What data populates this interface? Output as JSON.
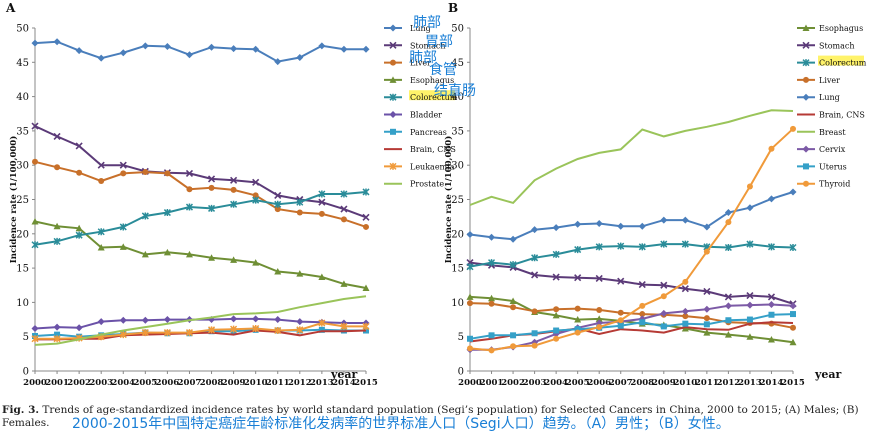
{
  "caption": {
    "label": "Fig. 3.",
    "text": "Trends of age-standardized incidence rates by world standard population (Segi’s population) for Selected Cancers in China, 2000 to 2015; (A) Males; (B) Females.",
    "note_zh": "2000-2015年中国特定癌症年龄标准化发病率的世界标准人口（Segi人口）趋势。（A）男性；（B）女性。"
  },
  "annotations_zh": [
    "肺部",
    "胃部",
    "肺部",
    "食管",
    "结直肠"
  ],
  "colors": {
    "Lung": "#4a7ebb",
    "Stomach": "#5b3a78",
    "Liver": "#c8702a",
    "Esophagus": "#6f8f35",
    "Colorectum": "#2a8c99",
    "Bladder": "#6b52a8",
    "Pancreas": "#35a0c8",
    "Brain, CNS": "#b63a35",
    "Leukaemia": "#f09a3a",
    "Prostate": "#9ac45a",
    "Breast": "#9ac45a",
    "Cervix": "#7c5aa6",
    "Uterus": "#35a0c8",
    "Thyroid": "#f09a3a"
  },
  "markers": {
    "Lung": "diamond",
    "Stomach": "x",
    "Liver": "circle",
    "Esophagus": "triangle",
    "Colorectum": "star",
    "Bladder": "diamond",
    "Pancreas": "square",
    "Brain, CNS": "none",
    "Leukaemia": "star",
    "Prostate": "none",
    "Breast": "none",
    "Cervix": "diamond",
    "Uterus": "square",
    "Thyroid": "circle"
  },
  "chart_data": [
    {
      "type": "line",
      "panel": "A",
      "ylabel": "Incidence rate (1/100,000)",
      "xlabel": "year",
      "ylim": [
        0,
        50
      ],
      "yticks": [
        0,
        5,
        10,
        15,
        20,
        25,
        30,
        35,
        40,
        45,
        50
      ],
      "x": [
        2000,
        2001,
        2002,
        2003,
        2004,
        2005,
        2006,
        2007,
        2008,
        2009,
        2010,
        2011,
        2012,
        2013,
        2014,
        2015
      ],
      "legend_position": "top-right",
      "series": [
        {
          "name": "Lung",
          "values": [
            47.8,
            48.0,
            46.7,
            45.6,
            46.4,
            47.4,
            47.3,
            46.1,
            47.2,
            47.0,
            46.9,
            45.1,
            45.7,
            47.4,
            46.9,
            46.9
          ]
        },
        {
          "name": "Stomach",
          "values": [
            35.7,
            34.2,
            32.8,
            30.0,
            30.0,
            29.1,
            28.9,
            28.8,
            28.0,
            27.8,
            27.5,
            25.6,
            25.0,
            24.6,
            23.6,
            22.4
          ]
        },
        {
          "name": "Liver",
          "values": [
            30.5,
            29.7,
            28.9,
            27.7,
            28.8,
            29.0,
            28.8,
            26.5,
            26.7,
            26.4,
            25.6,
            23.6,
            23.1,
            22.9,
            22.1,
            21.0
          ]
        },
        {
          "name": "Esophagus",
          "values": [
            21.8,
            21.1,
            20.8,
            18.0,
            18.1,
            17.0,
            17.3,
            17.0,
            16.5,
            16.2,
            15.8,
            14.5,
            14.2,
            13.7,
            12.7,
            12.1
          ]
        },
        {
          "name": "Colorectum",
          "values": [
            18.4,
            18.9,
            19.8,
            20.3,
            21.0,
            22.6,
            23.1,
            23.9,
            23.7,
            24.3,
            24.9,
            24.3,
            24.6,
            25.8,
            25.8,
            26.1
          ]
        },
        {
          "name": "Bladder",
          "values": [
            6.2,
            6.4,
            6.3,
            7.2,
            7.4,
            7.4,
            7.5,
            7.5,
            7.5,
            7.6,
            7.6,
            7.5,
            7.2,
            7.1,
            7.0,
            7.0
          ]
        },
        {
          "name": "Pancreas",
          "values": [
            5.1,
            5.3,
            5.0,
            5.2,
            5.4,
            5.6,
            5.5,
            5.5,
            5.8,
            5.8,
            6.0,
            5.9,
            5.9,
            6.0,
            5.9,
            5.9
          ]
        },
        {
          "name": "Brain, CNS",
          "values": [
            4.6,
            4.6,
            4.7,
            4.7,
            5.2,
            5.3,
            5.4,
            5.5,
            5.6,
            5.3,
            5.9,
            5.7,
            5.2,
            5.8,
            5.8,
            5.9
          ]
        },
        {
          "name": "Leukaemia",
          "values": [
            4.7,
            4.7,
            4.8,
            5.0,
            5.3,
            5.6,
            5.6,
            5.6,
            6.0,
            6.1,
            6.2,
            5.9,
            6.0,
            7.0,
            6.5,
            6.5
          ]
        },
        {
          "name": "Prostate",
          "values": [
            3.8,
            4.0,
            4.6,
            5.3,
            5.9,
            6.4,
            6.9,
            7.4,
            7.8,
            8.3,
            8.4,
            8.6,
            9.3,
            9.9,
            10.5,
            10.9
          ]
        }
      ]
    },
    {
      "type": "line",
      "panel": "B",
      "ylabel": "Incidence rate (1/100,000)",
      "xlabel": "year",
      "ylim": [
        0,
        50
      ],
      "yticks": [
        0,
        5,
        10,
        15,
        20,
        25,
        30,
        35,
        40,
        45,
        50
      ],
      "x": [
        2000,
        2001,
        2002,
        2003,
        2004,
        2005,
        2006,
        2007,
        2008,
        2009,
        2010,
        2011,
        2012,
        2013,
        2014,
        2015
      ],
      "legend_position": "top-right",
      "series": [
        {
          "name": "Esophagus",
          "values": [
            10.8,
            10.6,
            10.2,
            8.6,
            8.1,
            7.5,
            7.6,
            7.3,
            6.9,
            6.7,
            6.2,
            5.6,
            5.3,
            5.0,
            4.6,
            4.2
          ]
        },
        {
          "name": "Stomach",
          "values": [
            15.8,
            15.4,
            15.1,
            14.0,
            13.7,
            13.6,
            13.5,
            13.1,
            12.6,
            12.5,
            12.0,
            11.6,
            10.8,
            11.0,
            10.8,
            9.8
          ]
        },
        {
          "name": "Colorectum",
          "values": [
            15.2,
            15.8,
            15.5,
            16.5,
            17.0,
            17.7,
            18.1,
            18.2,
            18.1,
            18.5,
            18.5,
            18.1,
            18.0,
            18.5,
            18.1,
            18.0
          ]
        },
        {
          "name": "Liver",
          "values": [
            9.9,
            9.8,
            9.3,
            8.7,
            9.0,
            9.1,
            8.9,
            8.5,
            8.3,
            8.2,
            8.0,
            7.7,
            7.1,
            7.0,
            6.9,
            6.3
          ]
        },
        {
          "name": "Lung",
          "values": [
            19.9,
            19.5,
            19.2,
            20.6,
            20.9,
            21.4,
            21.5,
            21.1,
            21.1,
            22.0,
            22.0,
            21.0,
            23.1,
            23.8,
            25.1,
            26.1
          ]
        },
        {
          "name": "Brain, CNS",
          "values": [
            4.3,
            4.7,
            5.2,
            5.4,
            5.8,
            6.2,
            5.4,
            6.1,
            5.9,
            5.6,
            6.4,
            6.1,
            6.0,
            6.9,
            7.1,
            7.0
          ]
        },
        {
          "name": "Breast",
          "values": [
            24.2,
            25.4,
            24.5,
            27.8,
            29.5,
            30.9,
            31.8,
            32.3,
            35.2,
            34.2,
            35.0,
            35.6,
            36.3,
            37.2,
            38.0,
            37.9
          ]
        },
        {
          "name": "Cervix",
          "values": [
            3.1,
            3.1,
            3.5,
            4.2,
            5.4,
            6.3,
            7.0,
            7.2,
            7.6,
            8.4,
            8.7,
            9.0,
            9.5,
            9.6,
            9.7,
            9.5
          ]
        },
        {
          "name": "Uterus",
          "values": [
            4.7,
            5.2,
            5.2,
            5.5,
            5.9,
            6.1,
            6.3,
            6.6,
            7.1,
            6.5,
            6.9,
            6.8,
            7.4,
            7.5,
            8.2,
            8.3
          ]
        },
        {
          "name": "Thyroid",
          "values": [
            3.3,
            3.0,
            3.6,
            3.7,
            4.7,
            5.6,
            6.4,
            7.4,
            9.5,
            10.9,
            13.0,
            17.4,
            21.7,
            26.9,
            32.4,
            35.3
          ]
        }
      ]
    }
  ]
}
